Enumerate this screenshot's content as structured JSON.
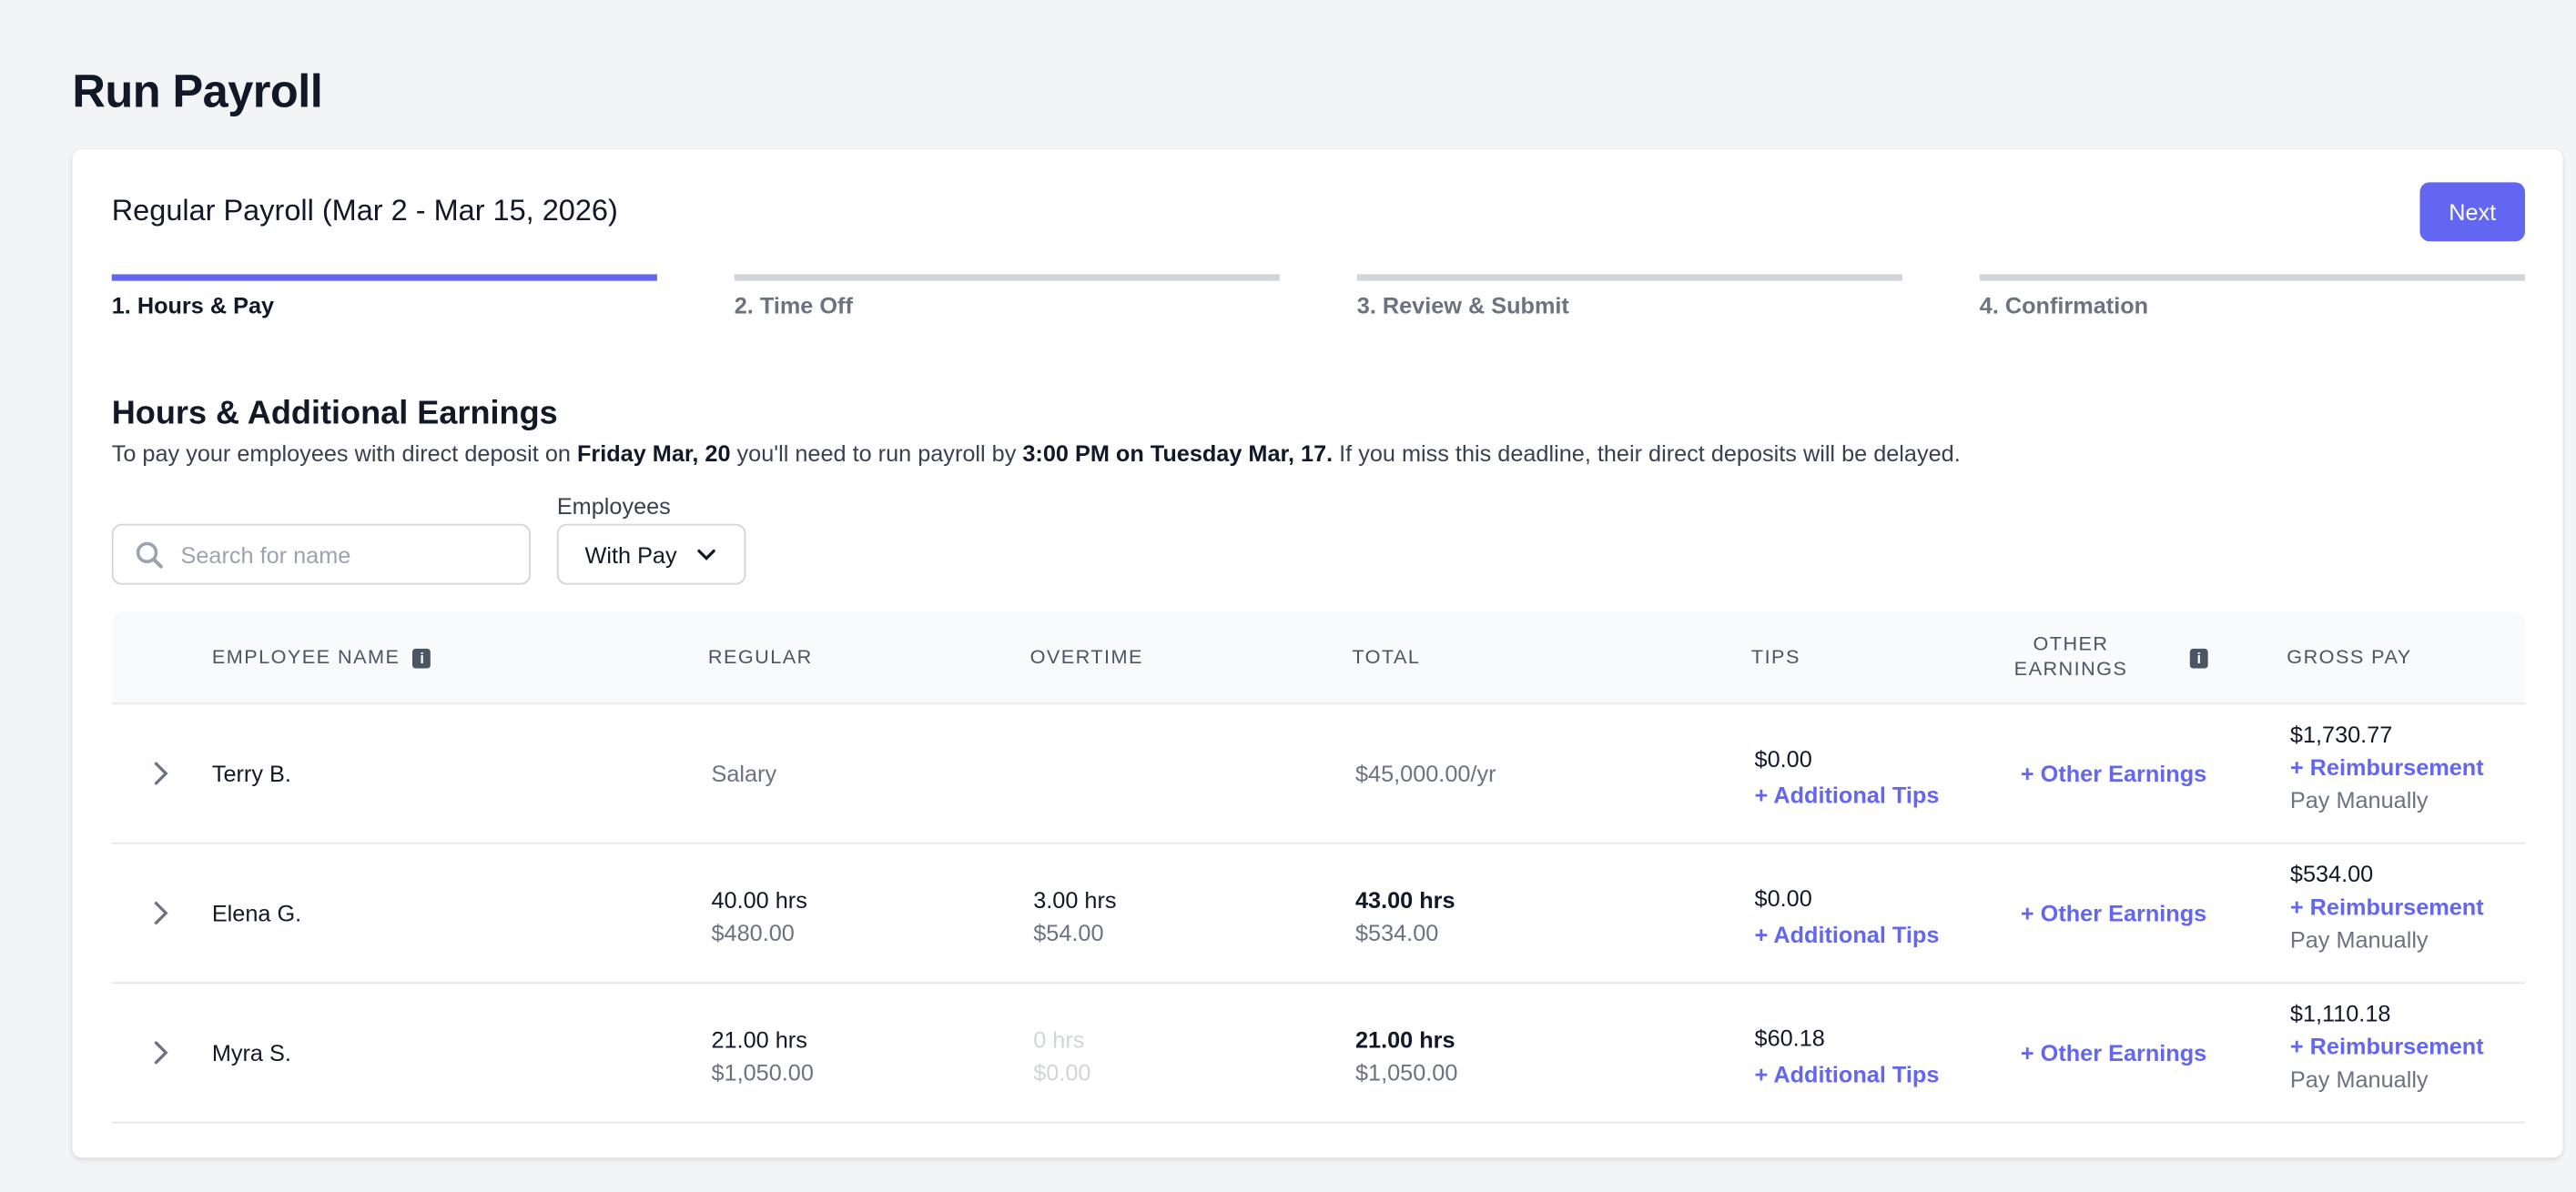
{
  "page_title": "Run Payroll",
  "payroll_title": "Regular Payroll (Mar 2 - Mar 15, 2026)",
  "next_label": "Next",
  "accent_color": "#6366f1",
  "steps": [
    {
      "label": "1. Hours & Pay",
      "active": true
    },
    {
      "label": "2. Time Off",
      "active": false
    },
    {
      "label": "3. Review & Submit",
      "active": false
    },
    {
      "label": "4. Confirmation",
      "active": false
    }
  ],
  "section": {
    "heading": "Hours & Additional Earnings",
    "text_1": "To pay your employees with direct deposit on ",
    "bold_1": "Friday Mar, 20",
    "text_2": " you'll need to run payroll by ",
    "bold_2": "3:00 PM on Tuesday Mar, 17.",
    "text_3": " If you miss this deadline, their direct deposits will be delayed."
  },
  "search": {
    "placeholder": "Search for name",
    "icon": "search-icon"
  },
  "employees_filter": {
    "label": "Employees",
    "value": "With Pay"
  },
  "columns": {
    "name": "EMPLOYEE NAME",
    "regular": "REGULAR",
    "overtime": "OVERTIME",
    "total": "TOTAL",
    "tips": "TIPS",
    "other_1": "OTHER",
    "other_2": "EARNINGS",
    "gross": "GROSS PAY",
    "info": "i"
  },
  "rows": [
    {
      "name": "Terry B.",
      "regular": "Salary",
      "regular_pay": "",
      "overtime": "",
      "overtime_pay": "",
      "total": "$45,000.00/yr",
      "total_pay": "",
      "tips": "$0.00",
      "tips_link": "+ Additional Tips",
      "other_link": "+ Other Earnings",
      "gross": "$1,730.77",
      "reimb_link": "+ Reimbursement",
      "pay_manually": "Pay Manually"
    },
    {
      "name": "Elena G.",
      "regular": "40.00 hrs",
      "regular_pay": "$480.00",
      "overtime": "3.00 hrs",
      "overtime_pay": "$54.00",
      "total": "43.00 hrs",
      "total_pay": "$534.00",
      "tips": "$0.00",
      "tips_link": "+ Additional Tips",
      "other_link": "+ Other Earnings",
      "gross": "$534.00",
      "reimb_link": "+ Reimbursement",
      "pay_manually": "Pay Manually"
    },
    {
      "name": "Myra S.",
      "regular": "21.00 hrs",
      "regular_pay": "$1,050.00",
      "overtime": "0 hrs",
      "overtime_pay": "$0.00",
      "total": "21.00 hrs",
      "total_pay": "$1,050.00",
      "tips": "$60.18",
      "tips_link": "+ Additional Tips",
      "other_link": "+ Other Earnings",
      "gross": "$1,110.18",
      "reimb_link": "+ Reimbursement",
      "pay_manually": "Pay Manually"
    }
  ]
}
